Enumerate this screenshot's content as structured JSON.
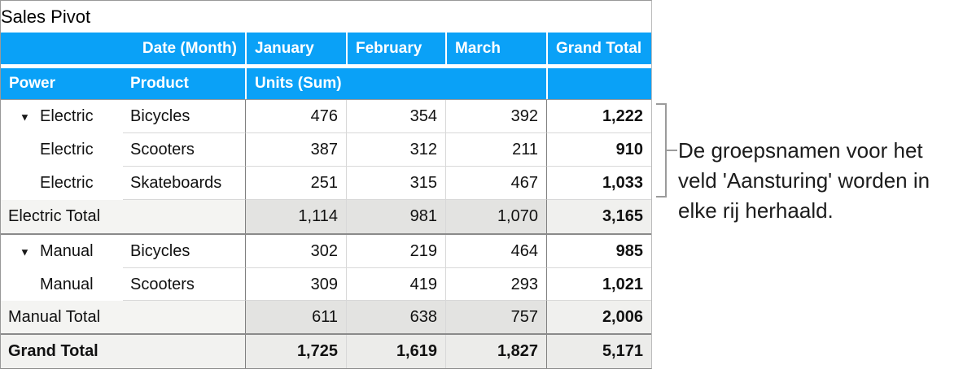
{
  "title": "Sales Pivot",
  "icons": {
    "disclosure": "▼"
  },
  "header": {
    "date_field": "Date (Month)",
    "months": [
      "January",
      "February",
      "March"
    ],
    "grand_total": "Grand Total",
    "power": "Power",
    "product": "Product",
    "units": "Units (Sum)"
  },
  "rows": [
    {
      "type": "item",
      "power": "Electric",
      "product": "Bicycles",
      "values": [
        "476",
        "354",
        "392"
      ],
      "total": "1,222"
    },
    {
      "type": "item",
      "power": "Electric",
      "product": "Scooters",
      "values": [
        "387",
        "312",
        "211"
      ],
      "total": "910"
    },
    {
      "type": "item",
      "power": "Electric",
      "product": "Skateboards",
      "values": [
        "251",
        "315",
        "467"
      ],
      "total": "1,033"
    },
    {
      "type": "subtotal",
      "label": "Electric Total",
      "values": [
        "1,114",
        "981",
        "1,070"
      ],
      "total": "3,165"
    },
    {
      "type": "item",
      "power": "Manual",
      "product": "Bicycles",
      "values": [
        "302",
        "219",
        "464"
      ],
      "total": "985"
    },
    {
      "type": "item",
      "power": "Manual",
      "product": "Scooters",
      "values": [
        "309",
        "419",
        "293"
      ],
      "total": "1,021"
    },
    {
      "type": "subtotal",
      "label": "Manual Total",
      "values": [
        "611",
        "638",
        "757"
      ],
      "total": "2,006"
    },
    {
      "type": "grand",
      "label": "Grand Total",
      "values": [
        "1,725",
        "1,619",
        "1,827"
      ],
      "total": "5,171"
    }
  ],
  "annotation": {
    "lines": [
      "De groepsnamen voor het",
      "veld 'Aansturing' worden in",
      "elke rij herhaald."
    ]
  },
  "colors": {
    "header_blue": "#0aa1f7",
    "header_text": "#ffffff",
    "dark_gridline": "#808080",
    "light_gridline": "#d8d8d8",
    "group_separator": "#8a8a8a",
    "outer_border": "#999999",
    "subtotal_label_bg": "#f4f4f2",
    "subtotal_data_bg": "#e3e3e1",
    "subtotal_grand_bg": "#f0f0ee",
    "grandrow_bg": "#ececea",
    "bracket_gray": "#9b9b9b",
    "text": "#111111"
  }
}
